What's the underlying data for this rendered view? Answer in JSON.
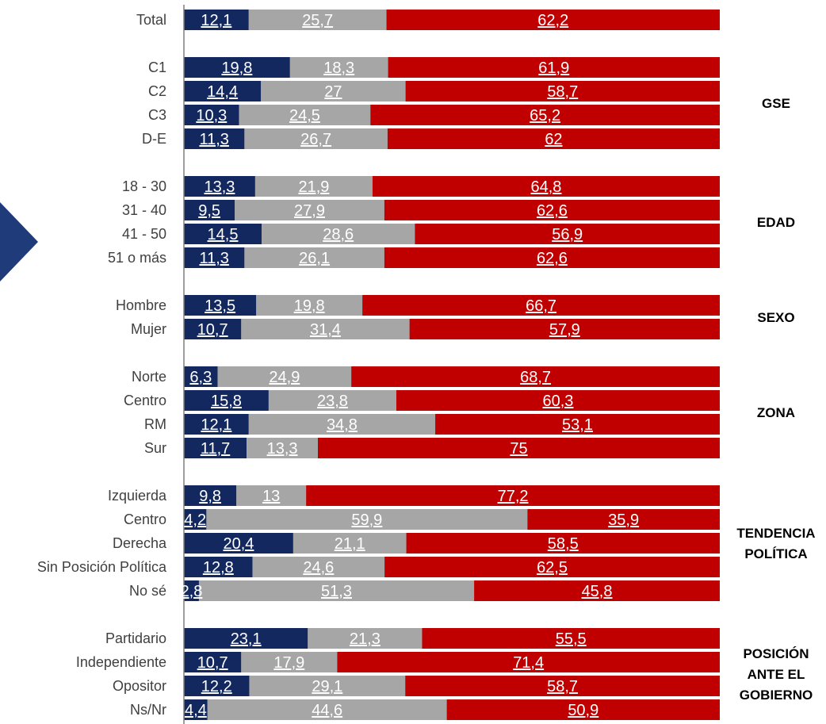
{
  "colors": {
    "segment_1": "#12285f",
    "segment_2": "#a6a6a6",
    "segment_3": "#c00000",
    "axis": "#7f7f7f",
    "arrow": "#1f3b7a"
  },
  "chart_data": {
    "type": "bar",
    "orientation": "horizontal",
    "stacked": true,
    "xlim": [
      0,
      100
    ],
    "rows": [
      {
        "label": "Total",
        "values": [
          "12,1",
          "25,7",
          "62,2"
        ]
      },
      {
        "label": "C1",
        "values": [
          "19,8",
          "18,3",
          "61,9"
        ]
      },
      {
        "label": "C2",
        "values": [
          "14,4",
          "27",
          "58,7"
        ]
      },
      {
        "label": "C3",
        "values": [
          "10,3",
          "24,5",
          "65,2"
        ]
      },
      {
        "label": "D-E",
        "values": [
          "11,3",
          "26,7",
          "62"
        ]
      },
      {
        "label": "18 - 30",
        "values": [
          "13,3",
          "21,9",
          "64,8"
        ]
      },
      {
        "label": "31 - 40",
        "values": [
          "9,5",
          "27,9",
          "62,6"
        ]
      },
      {
        "label": "41 - 50",
        "values": [
          "14,5",
          "28,6",
          "56,9"
        ]
      },
      {
        "label": "51 o más",
        "values": [
          "11,3",
          "26,1",
          "62,6"
        ]
      },
      {
        "label": "Hombre",
        "values": [
          "13,5",
          "19,8",
          "66,7"
        ]
      },
      {
        "label": "Mujer",
        "values": [
          "10,7",
          "31,4",
          "57,9"
        ]
      },
      {
        "label": "Norte",
        "values": [
          "6,3",
          "24,9",
          "68,7"
        ]
      },
      {
        "label": "Centro",
        "values": [
          "15,8",
          "23,8",
          "60,3"
        ]
      },
      {
        "label": "RM",
        "values": [
          "12,1",
          "34,8",
          "53,1"
        ]
      },
      {
        "label": "Sur",
        "values": [
          "11,7",
          "13,3",
          "75"
        ]
      },
      {
        "label": "Izquierda",
        "values": [
          "9,8",
          "13",
          "77,2"
        ]
      },
      {
        "label": "Centro",
        "values": [
          "4,2",
          "59,9",
          "35,9"
        ]
      },
      {
        "label": "Derecha",
        "values": [
          "20,4",
          "21,1",
          "58,5"
        ]
      },
      {
        "label": "Sin Posición Política",
        "values": [
          "12,8",
          "24,6",
          "62,5"
        ]
      },
      {
        "label": "No sé",
        "values": [
          "2,8",
          "51,3",
          "45,8"
        ]
      },
      {
        "label": "Partidario",
        "values": [
          "23,1",
          "21,3",
          "55,5"
        ]
      },
      {
        "label": "Independiente",
        "values": [
          "10,7",
          "17,9",
          "71,4"
        ]
      },
      {
        "label": "Opositor",
        "values": [
          "12,2",
          "29,1",
          "58,7"
        ]
      },
      {
        "label": "Ns/Nr",
        "values": [
          "4,4",
          "44,6",
          "50,9"
        ]
      }
    ],
    "groups": [
      {
        "lines": [
          "GSE"
        ]
      },
      {
        "lines": [
          "EDAD"
        ]
      },
      {
        "lines": [
          "SEXO"
        ]
      },
      {
        "lines": [
          "ZONA"
        ]
      },
      {
        "lines": [
          "TENDENCIA",
          "POLÍTICA"
        ]
      },
      {
        "lines": [
          "POSICIÓN",
          "ANTE EL",
          "GOBIERNO"
        ]
      }
    ]
  }
}
